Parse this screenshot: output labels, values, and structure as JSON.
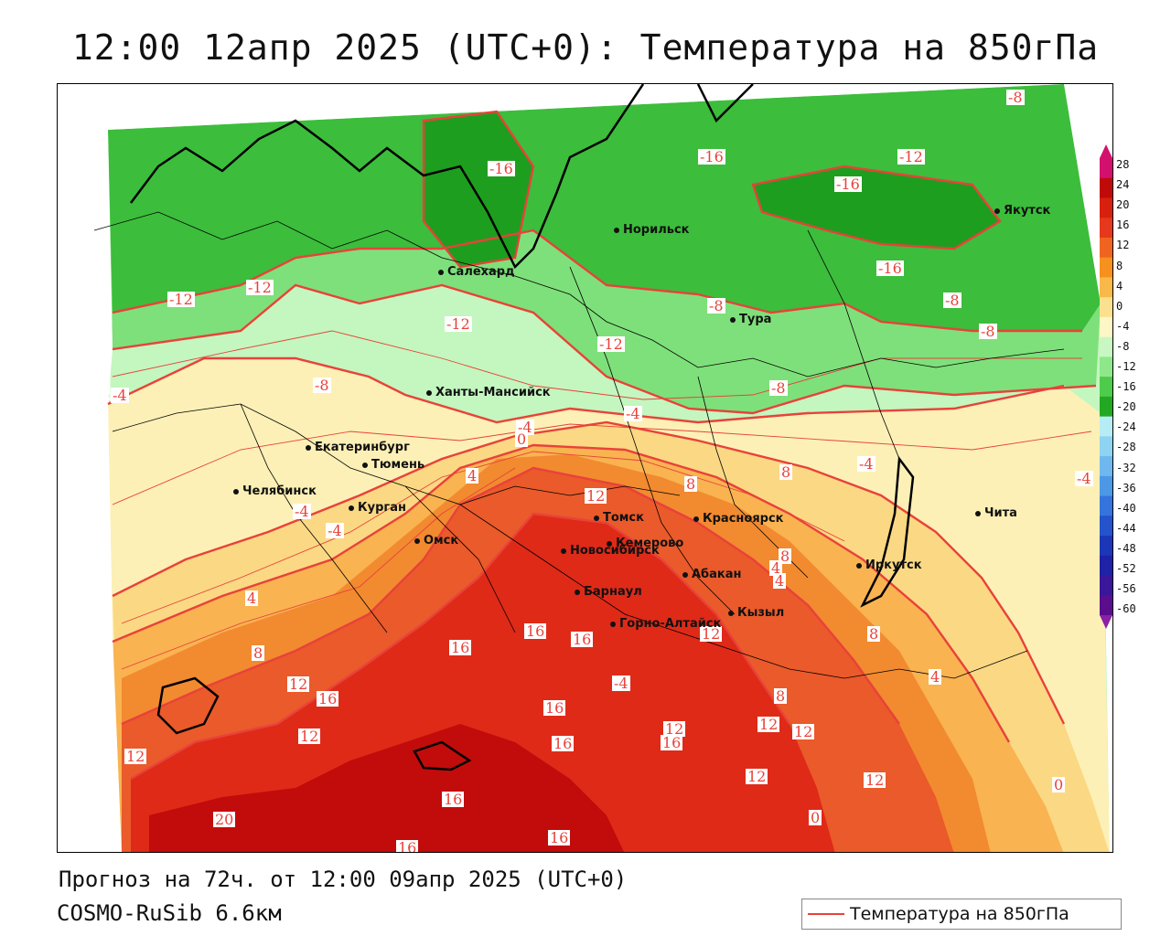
{
  "header": {
    "title": "12:00 12апр 2025 (UTC+0): Температура на 850гПа"
  },
  "footer": {
    "forecast": "Прогноз на 72ч. от 12:00 09апр 2025 (UTC+0)",
    "model": "COSMO-RuSib 6.6км"
  },
  "legend": {
    "label": "Температура на 850гПа",
    "line_color": "#e8423a"
  },
  "colors": {
    "green_dark": "#1e9e1e",
    "green_mid": "#3cbd3c",
    "green_light": "#7ee07a",
    "green_pale": "#c4f6bf",
    "yellow_pale": "#fdf0b6",
    "yellow": "#fbd884",
    "orange_light": "#f9b351",
    "orange": "#f28a30",
    "red_orange": "#ea5a2a",
    "red": "#df2a18",
    "dark_red": "#c20b0b",
    "contour": "#e8423a"
  },
  "colorbar": {
    "ticks": [
      "28",
      "24",
      "20",
      "16",
      "12",
      "8",
      "4",
      "0",
      "-4",
      "-8",
      "-12",
      "-16",
      "-20",
      "-24",
      "-28",
      "-32",
      "-36",
      "-40",
      "-44",
      "-48",
      "-52",
      "-56",
      "-60"
    ],
    "bands": [
      "#d4106e",
      "#c00a0a",
      "#d8200f",
      "#e6381c",
      "#ef6420",
      "#f6901e",
      "#f9b949",
      "#fbe18e",
      "#fdf6c6",
      "#c9f7c4",
      "#8ee88a",
      "#4fcb4c",
      "#23a823",
      "#b6ecf4",
      "#8ed3f2",
      "#6fb8ef",
      "#4d98e6",
      "#3474dc",
      "#2453cc",
      "#1b37b8",
      "#1f21a6",
      "#3a169a",
      "#5a0e8e"
    ]
  },
  "cities": [
    {
      "name": "Норильск"
    },
    {
      "name": "Якутск"
    },
    {
      "name": "Салехард"
    },
    {
      "name": "Тура"
    },
    {
      "name": "Ханты-Мансийск"
    },
    {
      "name": "Екатеринбург"
    },
    {
      "name": "Тюмень"
    },
    {
      "name": "Челябинск"
    },
    {
      "name": "Курган"
    },
    {
      "name": "Омск"
    },
    {
      "name": "Новосибирск"
    },
    {
      "name": "Томск"
    },
    {
      "name": "Кемерово"
    },
    {
      "name": "Красноярск"
    },
    {
      "name": "Абакан"
    },
    {
      "name": "Барнаул"
    },
    {
      "name": "Горно-Алтайск"
    },
    {
      "name": "Кызыл"
    },
    {
      "name": "Иркутск"
    },
    {
      "name": "Чита"
    }
  ],
  "contour_labels": [
    "-8",
    "-16",
    "-16",
    "-12",
    "-16",
    "-16",
    "-12",
    "-12",
    "-8",
    "-8",
    "-12",
    "-12",
    "-8",
    "-8",
    "-8",
    "-4",
    "-4",
    "-4",
    "-4",
    "-4",
    "-4",
    "-4",
    "0",
    "4",
    "8",
    "8",
    "12",
    "8",
    "4",
    "4",
    "4",
    "8",
    "12",
    "8",
    "12",
    "12",
    "16",
    "16",
    "16",
    "16",
    "16",
    "12",
    "16",
    "16",
    "16",
    "20",
    "16",
    "16",
    "12",
    "8",
    "12",
    "12",
    "4",
    "0",
    "-4",
    "0",
    "12",
    "12"
  ]
}
